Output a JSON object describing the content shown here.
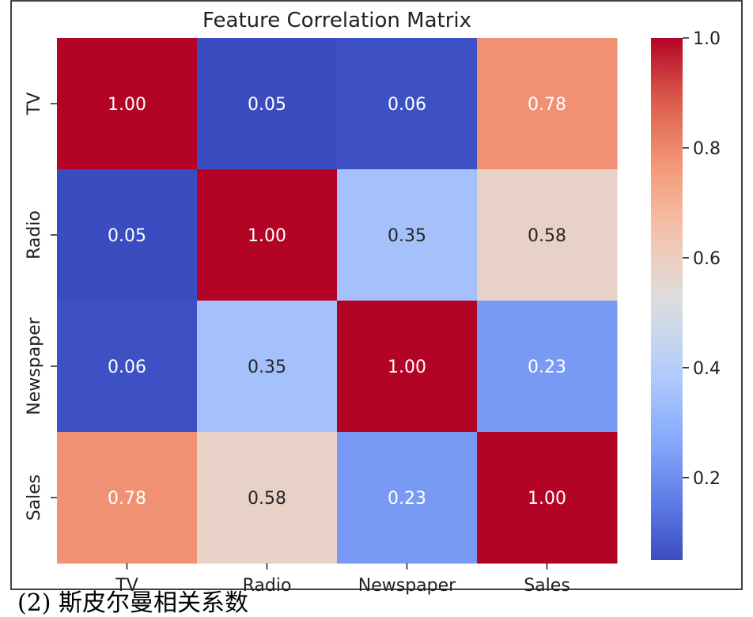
{
  "chart_data": {
    "type": "heatmap",
    "title": "Feature Correlation Matrix",
    "x_categories": [
      "TV",
      "Radio",
      "Newspaper",
      "Sales"
    ],
    "y_categories": [
      "TV",
      "Radio",
      "Newspaper",
      "Sales"
    ],
    "values": [
      [
        1.0,
        0.05,
        0.06,
        0.78
      ],
      [
        0.05,
        1.0,
        0.35,
        0.58
      ],
      [
        0.06,
        0.35,
        1.0,
        0.23
      ],
      [
        0.78,
        0.58,
        0.23,
        1.0
      ]
    ],
    "colormap": "coolwarm",
    "colorbar": {
      "min": 0.05,
      "max": 1.0,
      "ticks": [
        0.2,
        0.4,
        0.6,
        0.8,
        1.0
      ],
      "tick_labels": [
        "0.2",
        "0.4",
        "0.6",
        "0.8",
        "1.0"
      ]
    },
    "annotation_format": "2 decimals"
  },
  "caption": "(2) 斯皮尔曼相关系数"
}
